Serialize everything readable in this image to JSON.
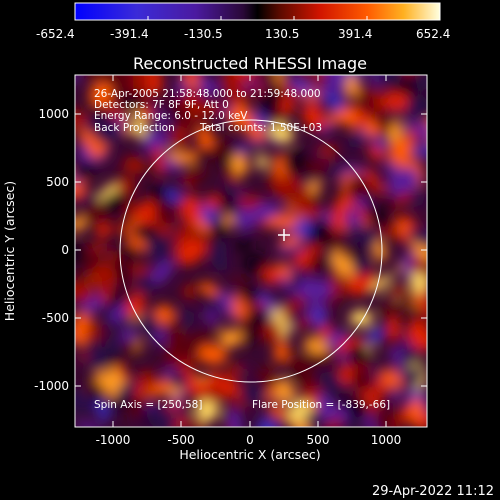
{
  "colorbar": {
    "tick_labels": [
      "-652.4",
      "-391.4",
      "-130.5",
      "130.5",
      "391.4",
      "652.4"
    ],
    "min": -652.4,
    "max": 652.4
  },
  "image": {
    "title": "Reconstructed RHESSI Image",
    "annotations": {
      "time_range": "26-Apr-2005 21:58:48.000 to 21:59:48.000",
      "detectors": "Detectors: 7F 8F 9F, Att 0",
      "energy_range": "Energy Range: 6.0 - 12.0 keV",
      "method": "Back Projection",
      "total_counts": "Total counts: 1.50E+03",
      "spin_axis": "Spin Axis = [250,58]",
      "flare_position": "Flare Position = [-839,-66]"
    },
    "x_axis": {
      "label": "Heliocentric X (arcsec)",
      "range": [
        -1280,
        1280
      ],
      "ticks": [
        "-1000",
        "-500",
        "0",
        "500",
        "1000"
      ]
    },
    "y_axis": {
      "label": "Heliocentric Y (arcsec)",
      "range": [
        -1280,
        1280
      ],
      "ticks": [
        "1000",
        "500",
        "0",
        "-500",
        "-1000"
      ]
    },
    "solar_limb_radius_arcsec": 954,
    "marker": "cross",
    "marker_position": [
      250,
      58
    ]
  },
  "footer": {
    "timestamp": "29-Apr-2022 11:12"
  },
  "colors": {
    "background": "#000000",
    "foreground": "#ffffff"
  }
}
